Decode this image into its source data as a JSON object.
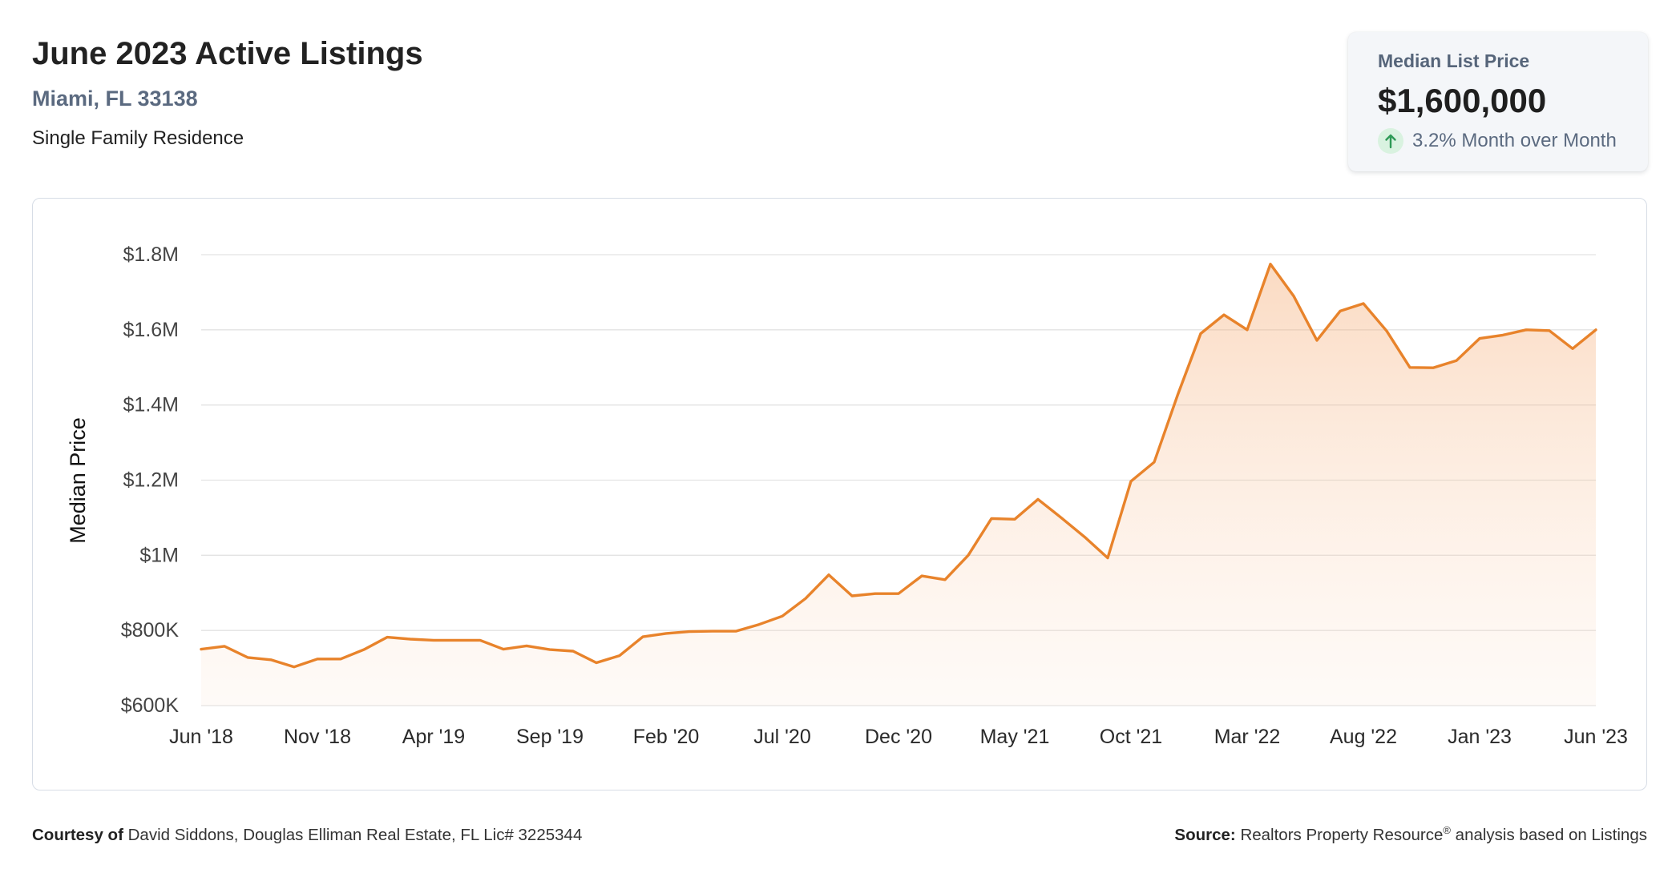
{
  "header": {
    "title": "June 2023 Active Listings",
    "location": "Miami, FL 33138",
    "property_type": "Single Family Residence"
  },
  "summary_card": {
    "label": "Median List Price",
    "value": "$1,600,000",
    "change_icon": "arrow-up-icon",
    "change_text": "3.2% Month over Month"
  },
  "chart_data": {
    "type": "area",
    "ylabel": "Median Price",
    "x": [
      "2018-06",
      "2018-07",
      "2018-08",
      "2018-09",
      "2018-10",
      "2018-11",
      "2018-12",
      "2019-01",
      "2019-02",
      "2019-03",
      "2019-04",
      "2019-05",
      "2019-06",
      "2019-07",
      "2019-08",
      "2019-09",
      "2019-10",
      "2019-11",
      "2019-12",
      "2020-01",
      "2020-02",
      "2020-03",
      "2020-04",
      "2020-05",
      "2020-06",
      "2020-07",
      "2020-08",
      "2020-09",
      "2020-10",
      "2020-11",
      "2020-12",
      "2021-01",
      "2021-02",
      "2021-03",
      "2021-04",
      "2021-05",
      "2021-06",
      "2021-07",
      "2021-08",
      "2021-09",
      "2021-10",
      "2021-11",
      "2021-12",
      "2022-01",
      "2022-02",
      "2022-03",
      "2022-04",
      "2022-05",
      "2022-06",
      "2022-07",
      "2022-08",
      "2022-09",
      "2022-10",
      "2022-11",
      "2022-12",
      "2023-01",
      "2023-02",
      "2023-03",
      "2023-04",
      "2023-05",
      "2023-06"
    ],
    "series": [
      {
        "values": [
          750000,
          758000,
          728000,
          722000,
          703000,
          724000,
          724000,
          749000,
          782000,
          777000,
          774000,
          774000,
          774000,
          750000,
          759000,
          749000,
          745000,
          714000,
          733000,
          783000,
          792000,
          797000,
          798000,
          798000,
          816000,
          838000,
          885000,
          948000,
          892000,
          898000,
          898000,
          945000,
          935000,
          1000000,
          1098000,
          1096000,
          1149000,
          1100000,
          1049000,
          993000,
          1197000,
          1248000,
          1425000,
          1590000,
          1640000,
          1600000,
          1775000,
          1690000,
          1572000,
          1650000,
          1670000,
          1597000,
          1500000,
          1499000,
          1518000,
          1577000,
          1586000,
          1600000,
          1598000,
          1550000,
          1600000
        ]
      }
    ],
    "ylim": [
      600000,
      1800000
    ],
    "yticks": [
      600000,
      800000,
      1000000,
      1200000,
      1400000,
      1600000,
      1800000
    ],
    "ytick_labels": [
      "$600K",
      "$800K",
      "$1M",
      "$1.2M",
      "$1.4M",
      "$1.6M",
      "$1.8M"
    ],
    "xticks": [
      "2018-06",
      "2018-11",
      "2019-04",
      "2019-09",
      "2020-02",
      "2020-07",
      "2020-12",
      "2021-05",
      "2021-10",
      "2022-03",
      "2022-08",
      "2023-01",
      "2023-06"
    ],
    "xtick_labels": [
      "Jun '18",
      "Nov '18",
      "Apr '19",
      "Sep '19",
      "Feb '20",
      "Jul '20",
      "Dec '20",
      "May '21",
      "Oct '21",
      "Mar '22",
      "Aug '22",
      "Jan '23",
      "Jun '23"
    ],
    "grid": true
  },
  "footer": {
    "courtesy_label": "Courtesy of",
    "courtesy_text": "David Siddons, Douglas Elliman Real Estate, FL Lic# 3225344",
    "source_label": "Source:",
    "source_name": "Realtors Property Resource",
    "source_mark": "®",
    "source_text": "analysis based on Listings"
  },
  "colors": {
    "accent_line": "#e8832b",
    "fill_top": "#f4a66b",
    "fill_bottom": "#fbd9bf",
    "grid": "#e3e3e3",
    "positive": "#2f9a57",
    "positive_bg": "#d9f2e0",
    "location_text": "#5b6a80"
  }
}
